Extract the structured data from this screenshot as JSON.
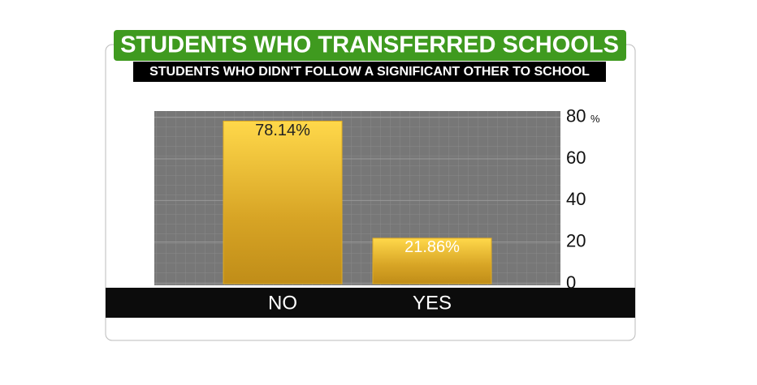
{
  "chart_data": {
    "type": "bar",
    "title": "STUDENTS WHO TRANSFERRED SCHOOLS",
    "subtitle": "STUDENTS WHO DIDN'T FOLLOW A SIGNIFICANT OTHER TO SCHOOL",
    "categories": [
      "NO",
      "YES"
    ],
    "values": [
      78.14,
      21.86
    ],
    "value_labels": [
      "78.14%",
      "21.86%"
    ],
    "color": "#e0ac22",
    "ylim": [
      0,
      83
    ],
    "yticks": [
      0,
      20,
      40,
      60,
      80
    ],
    "y_unit": "%",
    "grid": true
  }
}
